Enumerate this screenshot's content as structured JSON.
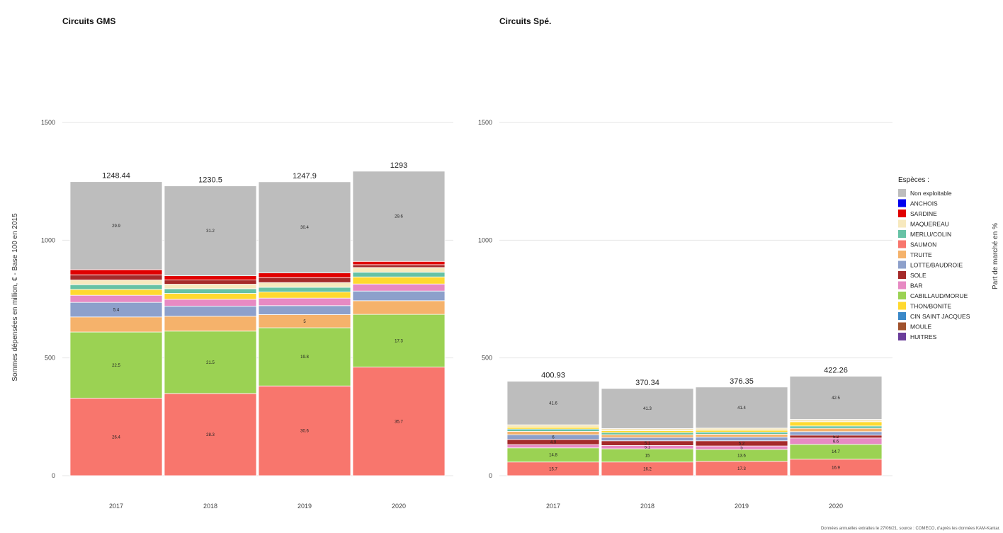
{
  "chart_data": {
    "type": "bar",
    "stacked": true,
    "ylabel": "Sommes dépensées en million, € - Base 100 en 2015",
    "right_label": "Part de marché en %",
    "caption": "Données annuelles extraites le 27/06/21, source : COMECO, d'après les données KAM-Kantar.",
    "grid": true,
    "legend_position": "right",
    "legend": {
      "title": "Espèces :",
      "entries": [
        {
          "name": "Non exploitable",
          "color": "#BDBDBD"
        },
        {
          "name": "ANCHOIS",
          "color": "#0000EE"
        },
        {
          "name": "SARDINE",
          "color": "#E00000"
        },
        {
          "name": "MAQUEREAU",
          "color": "#F7E9BE"
        },
        {
          "name": "MERLU/COLIN",
          "color": "#66C2A5"
        },
        {
          "name": "SAUMON",
          "color": "#F8766D"
        },
        {
          "name": "TRUITE",
          "color": "#F5B26B"
        },
        {
          "name": "LOTTE/BAUDROIE",
          "color": "#8DA0CB"
        },
        {
          "name": "SOLE",
          "color": "#A52A2A"
        },
        {
          "name": "BAR",
          "color": "#E78AC3"
        },
        {
          "name": "CABILLAUD/MORUE",
          "color": "#9BD253"
        },
        {
          "name": "THON/BONITE",
          "color": "#FFD92F"
        },
        {
          "name": "CIN SAINT JACQUES",
          "color": "#3A88C8"
        },
        {
          "name": "MOULE",
          "color": "#A0522D"
        },
        {
          "name": "HUITRES",
          "color": "#6A3D9A"
        }
      ]
    },
    "panels": [
      {
        "title": "Circuits GMS",
        "ylim": [
          0,
          1500
        ],
        "yticks": [
          "0",
          "500",
          "1000",
          "1500"
        ],
        "categories": [
          "2017",
          "2018",
          "2019",
          "2020"
        ],
        "totals": [
          1248.44,
          1230.5,
          1247.9,
          1293
        ],
        "total_labels": [
          "1248.44",
          "1230.5",
          "1247.9",
          "1293"
        ],
        "series": [
          {
            "name": "SAUMON",
            "values": [
              329,
              349,
              381,
              461
            ],
            "labels": [
              "26.4",
              "28.3",
              "30.6",
              "35.7"
            ]
          },
          {
            "name": "CABILLAUD/MORUE",
            "values": [
              281,
              265,
              247,
              224
            ],
            "labels": [
              "22.5",
              "21.5",
              "19.8",
              "17.3"
            ]
          },
          {
            "name": "TRUITE",
            "values": [
              64,
              63,
              56,
              58
            ],
            "labels": [
              "",
              "",
              "5",
              ""
            ]
          },
          {
            "name": "LOTTE/BAUDROIE",
            "values": [
              62,
              43,
              38,
              41
            ],
            "labels": [
              "5.4",
              "",
              "",
              ""
            ]
          },
          {
            "name": "BAR",
            "values": [
              30,
              29,
              32,
              30
            ],
            "labels": [
              "",
              "",
              "",
              ""
            ]
          },
          {
            "name": "THON/BONITE",
            "values": [
              25,
              25,
              26,
              30
            ],
            "labels": [
              "",
              "",
              "",
              ""
            ]
          },
          {
            "name": "MERLU/COLIN",
            "values": [
              20,
              20,
              20,
              20
            ],
            "labels": [
              "",
              "",
              "",
              ""
            ]
          },
          {
            "name": "MAQUEREAU",
            "values": [
              20,
              19,
              20,
              20
            ],
            "labels": [
              "",
              "",
              "",
              ""
            ]
          },
          {
            "name": "SOLE",
            "values": [
              22,
              18,
              21,
              12
            ],
            "labels": [
              "",
              "",
              "",
              ""
            ]
          },
          {
            "name": "SARDINE",
            "values": [
              22,
              18,
              20,
              14
            ],
            "labels": [
              "",
              "",
              "",
              ""
            ]
          },
          {
            "name": "Non exploitable",
            "values": [
              373.44,
              381.5,
              386.9,
              383
            ],
            "labels": [
              "29.9",
              "31.2",
              "30.4",
              "29.6"
            ]
          }
        ]
      },
      {
        "title": "Circuits Spé.",
        "ylim": [
          0,
          1500
        ],
        "yticks": [
          "0",
          "500",
          "1000",
          "1500"
        ],
        "categories": [
          "2017",
          "2018",
          "2019",
          "2020"
        ],
        "totals": [
          400.93,
          370.34,
          376.35,
          422.26
        ],
        "total_labels": [
          "400.93",
          "370.34",
          "376.35",
          "422.26"
        ],
        "series": [
          {
            "name": "SAUMON",
            "values": [
              58,
              58,
              61,
              70
            ],
            "labels": [
              "15.7",
              "16.2",
              "17.3",
              "16.9"
            ]
          },
          {
            "name": "CABILLAUD/MORUE",
            "values": [
              60,
              56,
              50,
              63
            ],
            "labels": [
              "14.8",
              "15",
              "13.6",
              "14.7"
            ]
          },
          {
            "name": "BAR",
            "values": [
              14,
              14,
              15,
              27
            ],
            "labels": [
              "",
              "5.1",
              "5",
              "6.6"
            ]
          },
          {
            "name": "SOLE",
            "values": [
              22,
              20,
              22,
              12
            ],
            "labels": [
              "4.9",
              "5.1",
              "5.2",
              "5.2"
            ]
          },
          {
            "name": "LOTTE/BAUDROIE",
            "values": [
              20,
              14,
              16,
              15
            ],
            "labels": [
              "6",
              "",
              "",
              ""
            ]
          },
          {
            "name": "TRUITE",
            "values": [
              14,
              12,
              12,
              14
            ],
            "labels": [
              "",
              "",
              "",
              ""
            ]
          },
          {
            "name": "MERLU/COLIN",
            "values": [
              10,
              9,
              9,
              10
            ],
            "labels": [
              "",
              "",
              "",
              ""
            ]
          },
          {
            "name": "THON/BONITE",
            "values": [
              8,
              8,
              8,
              18
            ],
            "labels": [
              "",
              "",
              "",
              ""
            ]
          },
          {
            "name": "MAQUEREAU",
            "values": [
              10,
              9,
              9,
              10
            ],
            "labels": [
              "",
              "",
              "",
              ""
            ]
          },
          {
            "name": "Non exploitable",
            "values": [
              184.93,
              170.34,
              174.35,
              183.26
            ],
            "labels": [
              "41.6",
              "41.3",
              "41.4",
              "42.5"
            ]
          }
        ]
      }
    ]
  }
}
